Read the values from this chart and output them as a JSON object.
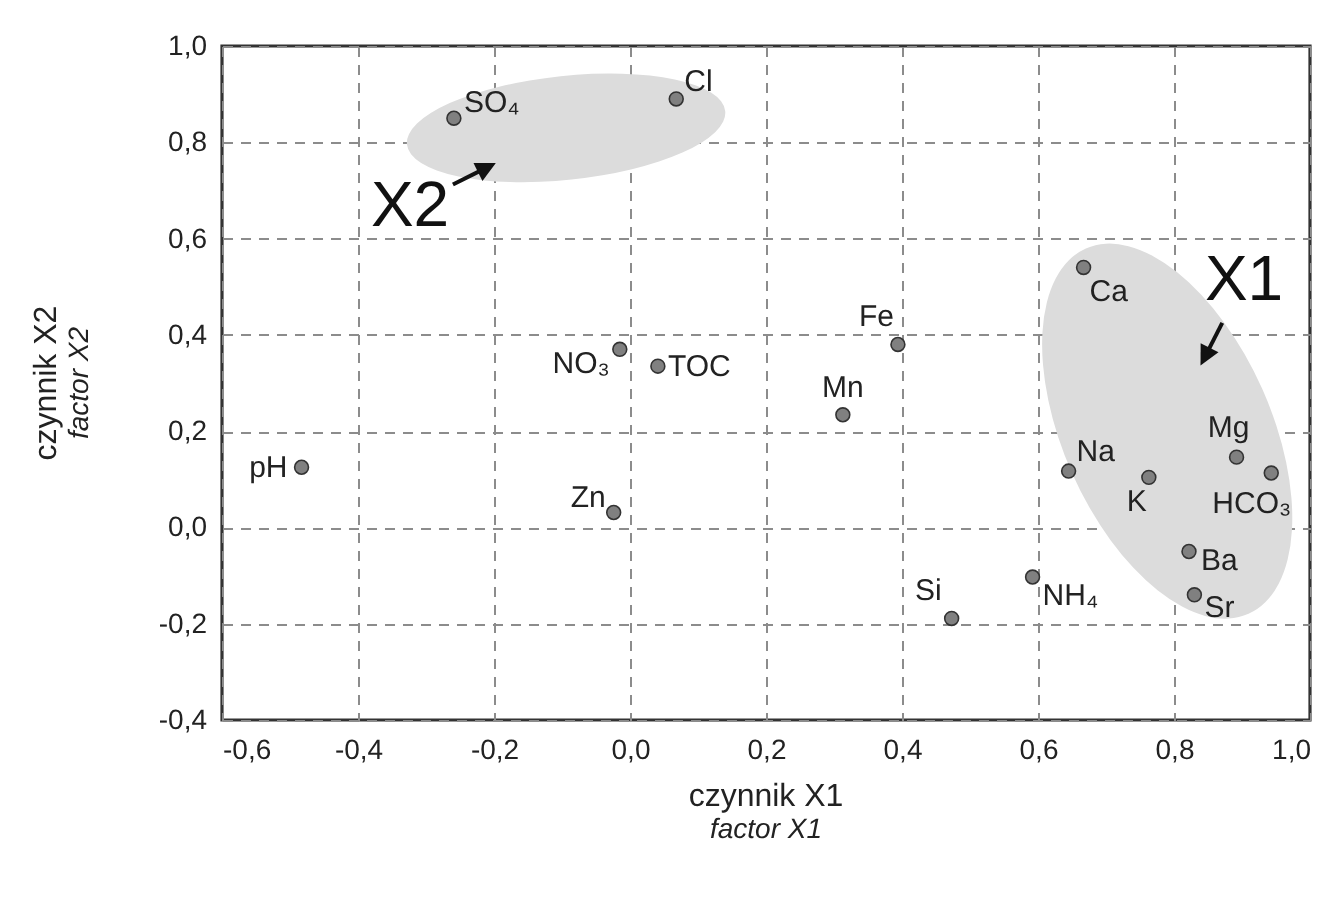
{
  "chart_data": {
    "type": "scatter",
    "xlabel": "czynnik X1\nfactor X1",
    "ylabel": "czynnik X2\nfactor X2",
    "x": [
      -0.483,
      -0.259,
      0.068,
      -0.015,
      0.041,
      -0.024,
      0.394,
      0.313,
      0.667,
      0.645,
      0.763,
      0.892,
      0.943,
      0.822,
      0.83,
      0.592,
      0.473
    ],
    "values": [
      0.125,
      0.85,
      0.89,
      0.37,
      0.335,
      0.031,
      0.38,
      0.234,
      0.54,
      0.117,
      0.104,
      0.146,
      0.113,
      -0.05,
      -0.14,
      -0.103,
      -0.189
    ],
    "value_labels": [
      "pH",
      "SO₄",
      "Cl",
      "NO₃",
      "TOC",
      "Zn",
      "Fe",
      "Mn",
      "Ca",
      "Na",
      "K",
      "Mg",
      "HCO₃",
      "Ba",
      "Sr",
      "NH₄",
      "Si"
    ],
    "color": "#808080",
    "marker": "circle",
    "xlim": [
      -0.6,
      1.0
    ],
    "ylim": [
      -0.4,
      1.0
    ],
    "xticks": [
      {
        "value": -0.6,
        "label": "-0,6"
      },
      {
        "value": -0.4,
        "label": "-0,4"
      },
      {
        "value": -0.2,
        "label": "-0,2"
      },
      {
        "value": 0,
        "label": "0,0"
      },
      {
        "value": 0.2,
        "label": "0,2"
      },
      {
        "value": 0.4,
        "label": "0,4"
      },
      {
        "value": 0.6,
        "label": "0,6"
      },
      {
        "value": 0.8,
        "label": "0,8"
      },
      {
        "value": 1.0,
        "label": "1,0"
      }
    ],
    "yticks": [
      {
        "value": -0.4,
        "label": "-0,4"
      },
      {
        "value": -0.2,
        "label": "-0,2"
      },
      {
        "value": 0,
        "label": "0,0"
      },
      {
        "value": 0.2,
        "label": "0,2"
      },
      {
        "value": 0.4,
        "label": "0,4"
      },
      {
        "value": 0.6,
        "label": "0,6"
      },
      {
        "value": 0.8,
        "label": "0,8"
      },
      {
        "value": 1.0,
        "label": "1,0"
      }
    ],
    "grid": true,
    "annotations": [
      "X2",
      "X1"
    ]
  }
}
